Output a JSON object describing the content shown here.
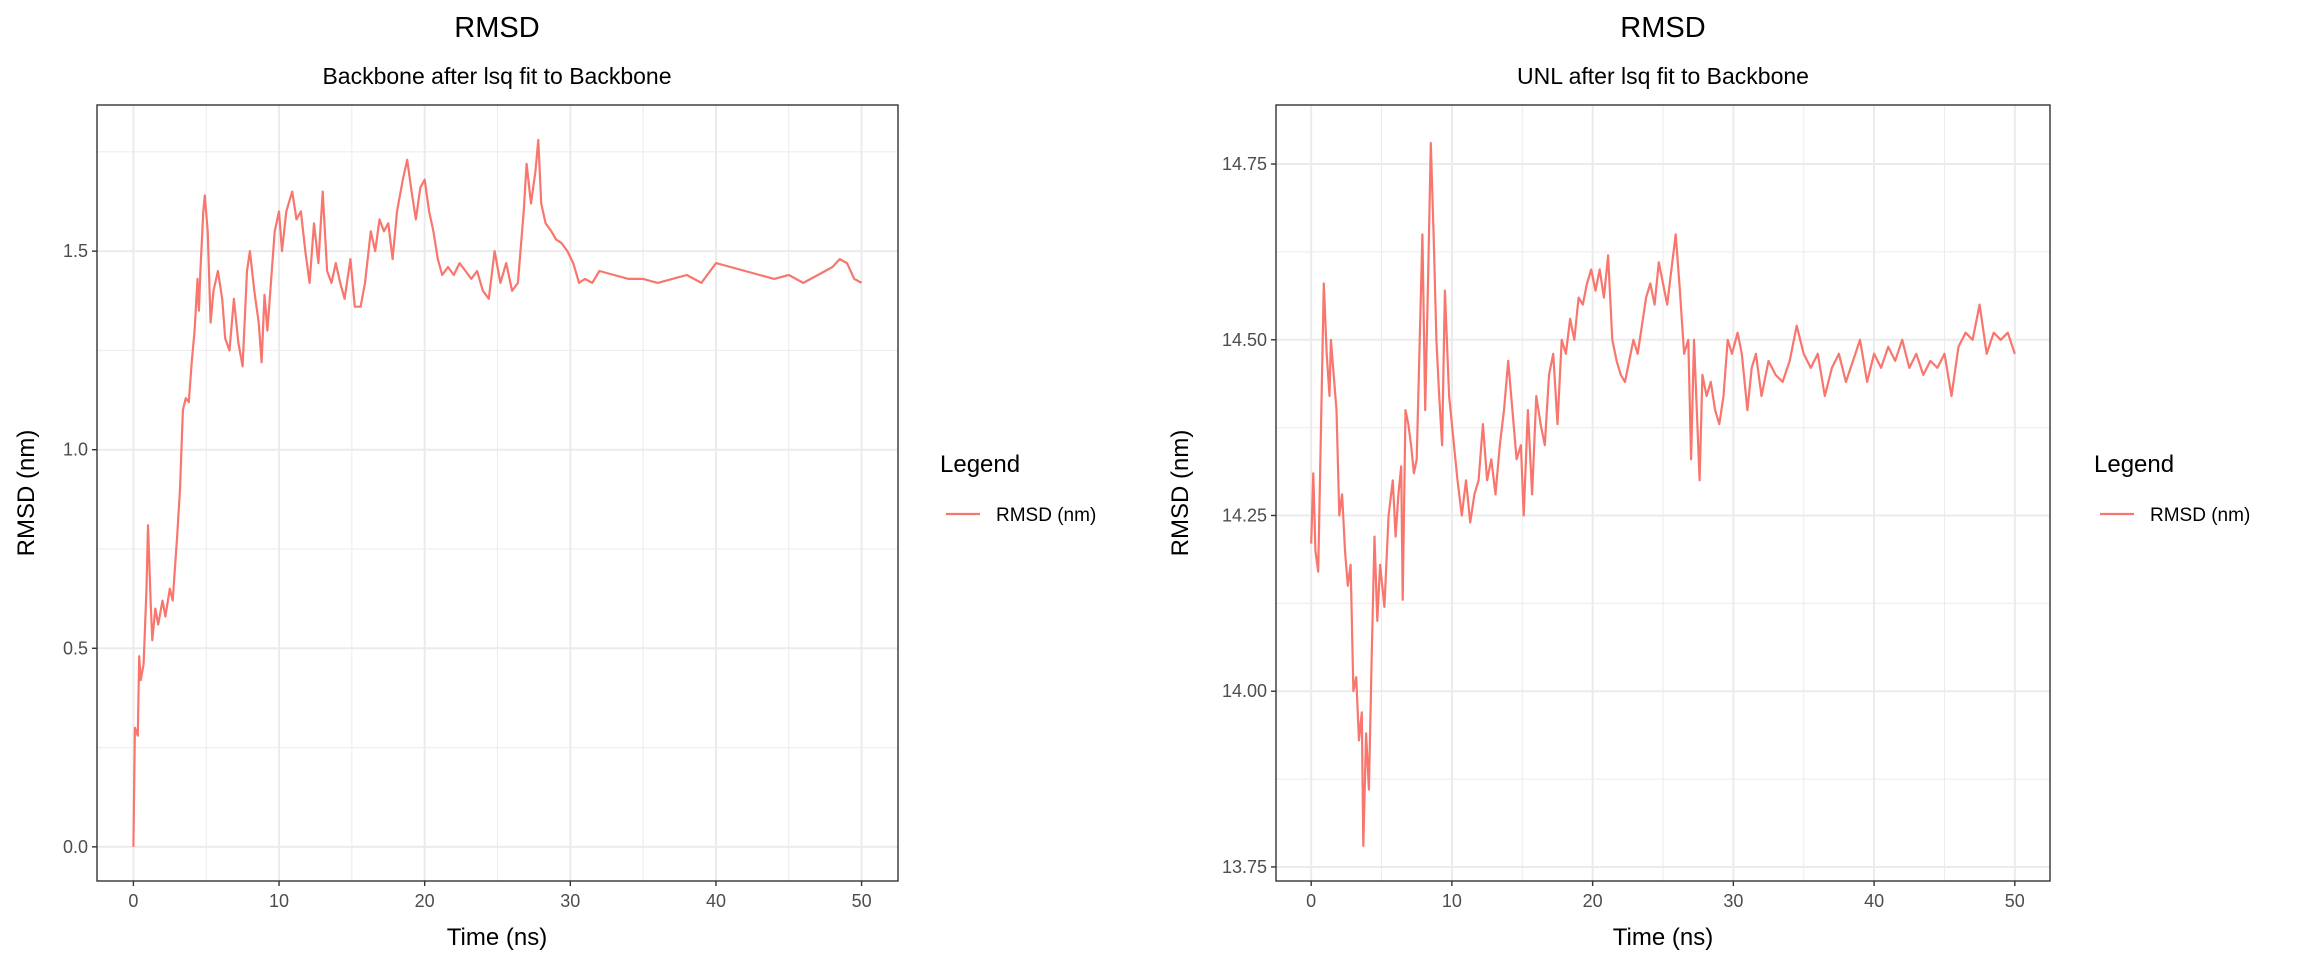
{
  "colors": {
    "series": "#F8766D",
    "grid": "#EBEBEB",
    "border": "#333333",
    "tick_text": "#4D4D4D"
  },
  "chart_data": [
    {
      "type": "line",
      "title": "RMSD",
      "subtitle": "Backbone after lsq fit to Backbone",
      "xlabel": "Time (ns)",
      "ylabel": "RMSD (nm)",
      "xlim": [
        -2.5,
        52.5
      ],
      "ylim": [
        -0.086,
        1.868
      ],
      "xticks": [
        0,
        10,
        20,
        30,
        40,
        50
      ],
      "xtick_labels": [
        "0",
        "10",
        "20",
        "30",
        "40",
        "50"
      ],
      "xminor": [
        5,
        15,
        25,
        35,
        45
      ],
      "yticks": [
        0,
        0.5,
        1.0,
        1.5
      ],
      "ytick_labels": [
        "0.0",
        "0.5",
        "1.0",
        "1.5"
      ],
      "yminor": [
        0.25,
        0.75,
        1.25,
        1.75
      ],
      "grid": true,
      "legend": {
        "title": "Legend",
        "position": "right",
        "entries": [
          "RMSD (nm)"
        ]
      },
      "series": [
        {
          "name": "RMSD (nm)",
          "x": [
            0,
            0.1,
            0.3,
            0.4,
            0.5,
            0.7,
            0.9,
            1.0,
            1.2,
            1.3,
            1.5,
            1.7,
            2.0,
            2.2,
            2.5,
            2.7,
            3.0,
            3.2,
            3.4,
            3.6,
            3.8,
            4.0,
            4.2,
            4.4,
            4.5,
            4.6,
            4.8,
            4.9,
            5.1,
            5.3,
            5.5,
            5.8,
            6.1,
            6.3,
            6.6,
            6.9,
            7.2,
            7.5,
            7.8,
            8.0,
            8.3,
            8.6,
            8.8,
            9.0,
            9.2,
            9.5,
            9.7,
            10.0,
            10.2,
            10.5,
            10.9,
            11.2,
            11.5,
            11.8,
            12.1,
            12.4,
            12.7,
            13.0,
            13.3,
            13.6,
            13.9,
            14.2,
            14.5,
            14.9,
            15.2,
            15.6,
            15.9,
            16.3,
            16.6,
            16.9,
            17.2,
            17.5,
            17.8,
            18.1,
            18.5,
            18.8,
            19.1,
            19.4,
            19.7,
            20.0,
            20.3,
            20.6,
            20.9,
            21.2,
            21.6,
            22.0,
            22.4,
            22.8,
            23.2,
            23.6,
            24.0,
            24.4,
            24.8,
            25.2,
            25.6,
            26.0,
            26.4,
            26.8,
            27.0,
            27.3,
            27.6,
            27.8,
            28.0,
            28.3,
            28.7,
            29.0,
            29.4,
            29.8,
            30.2,
            30.6,
            31.0,
            31.5,
            32,
            33,
            34,
            35,
            36,
            37,
            38,
            39,
            40,
            41,
            42,
            43,
            44,
            45,
            46,
            47,
            48,
            48.5,
            49,
            49.5,
            50
          ],
          "y": [
            0,
            0.3,
            0.28,
            0.48,
            0.42,
            0.46,
            0.65,
            0.81,
            0.6,
            0.52,
            0.6,
            0.56,
            0.62,
            0.58,
            0.65,
            0.62,
            0.78,
            0.9,
            1.1,
            1.13,
            1.12,
            1.22,
            1.3,
            1.43,
            1.35,
            1.45,
            1.6,
            1.64,
            1.55,
            1.32,
            1.4,
            1.45,
            1.38,
            1.28,
            1.25,
            1.38,
            1.27,
            1.21,
            1.45,
            1.5,
            1.4,
            1.32,
            1.22,
            1.39,
            1.3,
            1.45,
            1.55,
            1.6,
            1.5,
            1.6,
            1.65,
            1.58,
            1.6,
            1.5,
            1.42,
            1.57,
            1.47,
            1.65,
            1.45,
            1.42,
            1.47,
            1.42,
            1.38,
            1.48,
            1.36,
            1.36,
            1.42,
            1.55,
            1.5,
            1.58,
            1.55,
            1.57,
            1.48,
            1.6,
            1.68,
            1.73,
            1.65,
            1.58,
            1.66,
            1.68,
            1.6,
            1.55,
            1.48,
            1.44,
            1.46,
            1.44,
            1.47,
            1.45,
            1.43,
            1.45,
            1.4,
            1.38,
            1.5,
            1.42,
            1.47,
            1.4,
            1.42,
            1.6,
            1.72,
            1.62,
            1.7,
            1.78,
            1.62,
            1.57,
            1.55,
            1.53,
            1.52,
            1.5,
            1.47,
            1.42,
            1.43,
            1.42,
            1.45,
            1.44,
            1.43,
            1.43,
            1.42,
            1.43,
            1.44,
            1.42,
            1.47,
            1.46,
            1.45,
            1.44,
            1.43,
            1.44,
            1.42,
            1.44,
            1.46,
            1.48,
            1.47,
            1.43,
            1.42
          ]
        }
      ]
    },
    {
      "type": "line",
      "title": "RMSD",
      "subtitle": "UNL after lsq fit to Backbone",
      "xlabel": "Time (ns)",
      "ylabel": "RMSD (nm)",
      "xlim": [
        -2.5,
        52.5
      ],
      "ylim": [
        13.73,
        14.834
      ],
      "xticks": [
        0,
        10,
        20,
        30,
        40,
        50
      ],
      "xtick_labels": [
        "0",
        "10",
        "20",
        "30",
        "40",
        "50"
      ],
      "xminor": [
        5,
        15,
        25,
        35,
        45
      ],
      "yticks": [
        13.75,
        14.0,
        14.25,
        14.5,
        14.75
      ],
      "ytick_labels": [
        "13.75",
        "14.00",
        "14.25",
        "14.50",
        "14.75"
      ],
      "yminor": [
        13.875,
        14.125,
        14.375,
        14.625
      ],
      "grid": true,
      "legend": {
        "title": "Legend",
        "position": "right",
        "entries": [
          "RMSD (nm)"
        ]
      },
      "series": [
        {
          "name": "RMSD (nm)",
          "x": [
            0,
            0.15,
            0.3,
            0.5,
            0.9,
            1.1,
            1.3,
            1.4,
            1.6,
            1.8,
            2.0,
            2.2,
            2.4,
            2.6,
            2.8,
            3.0,
            3.2,
            3.4,
            3.6,
            3.7,
            3.9,
            4.1,
            4.3,
            4.5,
            4.7,
            4.9,
            5.2,
            5.5,
            5.8,
            6.0,
            6.2,
            6.4,
            6.5,
            6.7,
            6.9,
            7.1,
            7.3,
            7.5,
            7.9,
            8.1,
            8.3,
            8.5,
            8.7,
            8.9,
            9.1,
            9.3,
            9.5,
            9.8,
            10.1,
            10.4,
            10.7,
            11.0,
            11.3,
            11.6,
            11.9,
            12.2,
            12.5,
            12.8,
            13.1,
            13.4,
            13.7,
            14.0,
            14.3,
            14.6,
            14.9,
            15.1,
            15.4,
            15.7,
            16.0,
            16.3,
            16.6,
            16.9,
            17.2,
            17.5,
            17.8,
            18.1,
            18.4,
            18.7,
            19.0,
            19.3,
            19.6,
            19.9,
            20.2,
            20.5,
            20.8,
            21.1,
            21.4,
            21.7,
            22.0,
            22.3,
            22.6,
            22.9,
            23.2,
            23.5,
            23.8,
            24.1,
            24.4,
            24.7,
            25.0,
            25.3,
            25.6,
            25.9,
            26.2,
            26.5,
            26.8,
            27.0,
            27.2,
            27.4,
            27.6,
            27.8,
            28.1,
            28.4,
            28.7,
            29.0,
            29.3,
            29.6,
            29.9,
            30.3,
            30.6,
            31.0,
            31.3,
            31.6,
            32,
            32.5,
            33,
            33.5,
            34,
            34.5,
            35,
            35.5,
            36,
            36.5,
            37,
            37.5,
            38,
            38.5,
            39,
            39.5,
            40,
            40.5,
            41,
            41.5,
            42,
            42.5,
            43,
            43.5,
            44,
            44.5,
            45,
            45.5,
            46,
            46.5,
            47,
            47.5,
            48,
            48.5,
            49,
            49.5,
            50
          ],
          "y": [
            14.21,
            14.31,
            14.2,
            14.17,
            14.58,
            14.48,
            14.42,
            14.5,
            14.45,
            14.4,
            14.25,
            14.28,
            14.2,
            14.15,
            14.18,
            14.0,
            14.02,
            13.93,
            13.97,
            13.78,
            13.94,
            13.86,
            14.05,
            14.22,
            14.1,
            14.18,
            14.12,
            14.25,
            14.3,
            14.22,
            14.28,
            14.32,
            14.13,
            14.4,
            14.38,
            14.35,
            14.31,
            14.33,
            14.65,
            14.4,
            14.58,
            14.78,
            14.65,
            14.5,
            14.42,
            14.35,
            14.57,
            14.42,
            14.36,
            14.3,
            14.25,
            14.3,
            14.24,
            14.28,
            14.3,
            14.38,
            14.3,
            14.33,
            14.28,
            14.35,
            14.4,
            14.47,
            14.4,
            14.33,
            14.35,
            14.25,
            14.4,
            14.28,
            14.42,
            14.38,
            14.35,
            14.45,
            14.48,
            14.38,
            14.5,
            14.48,
            14.53,
            14.5,
            14.56,
            14.55,
            14.58,
            14.6,
            14.57,
            14.6,
            14.56,
            14.62,
            14.5,
            14.47,
            14.45,
            14.44,
            14.47,
            14.5,
            14.48,
            14.52,
            14.56,
            14.58,
            14.55,
            14.61,
            14.58,
            14.55,
            14.6,
            14.65,
            14.57,
            14.48,
            14.5,
            14.33,
            14.5,
            14.4,
            14.3,
            14.45,
            14.42,
            14.44,
            14.4,
            14.38,
            14.42,
            14.5,
            14.48,
            14.51,
            14.48,
            14.4,
            14.46,
            14.48,
            14.42,
            14.47,
            14.45,
            14.44,
            14.47,
            14.52,
            14.48,
            14.46,
            14.48,
            14.42,
            14.46,
            14.48,
            14.44,
            14.47,
            14.5,
            14.44,
            14.48,
            14.46,
            14.49,
            14.47,
            14.5,
            14.46,
            14.48,
            14.45,
            14.47,
            14.46,
            14.48,
            14.42,
            14.49,
            14.51,
            14.5,
            14.55,
            14.48,
            14.51,
            14.5,
            14.51,
            14.48
          ]
        }
      ]
    }
  ]
}
